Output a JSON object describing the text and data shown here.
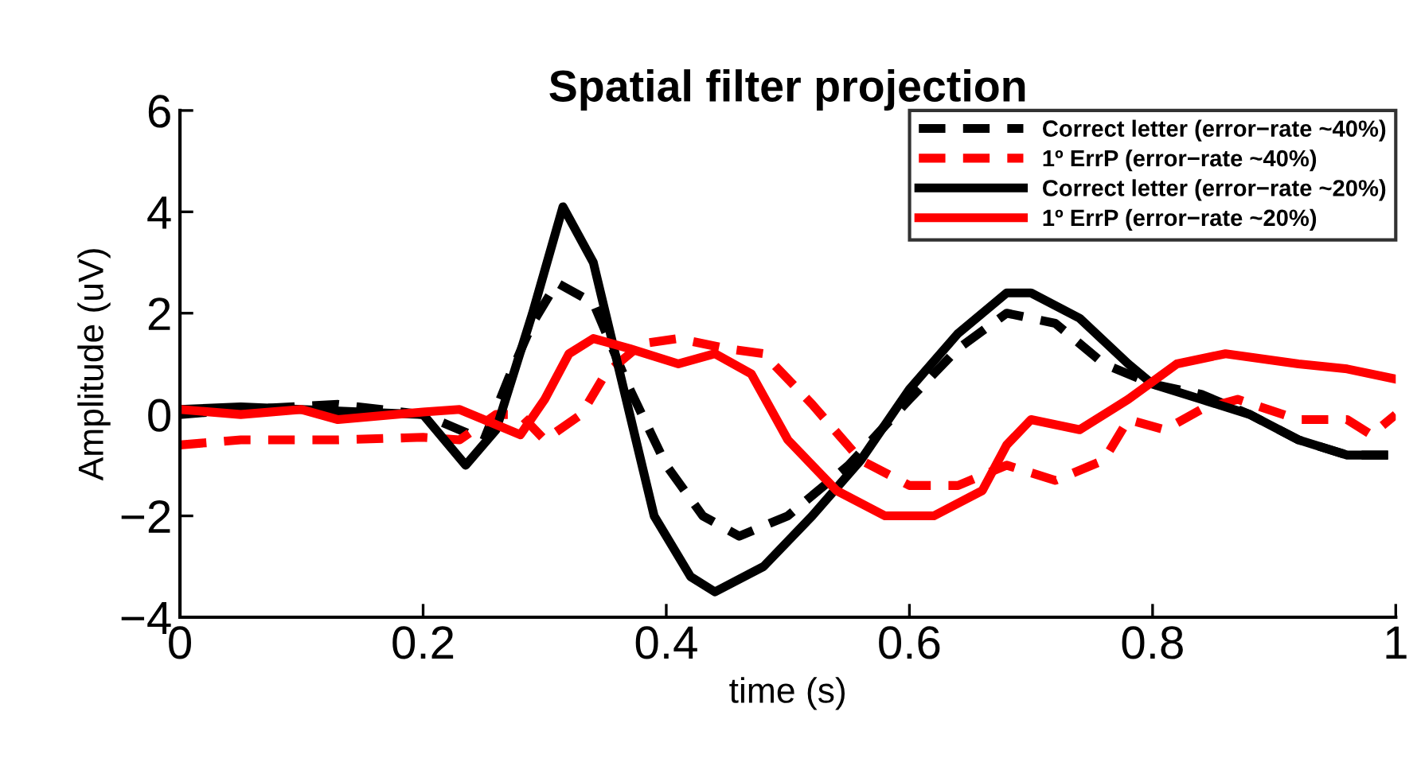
{
  "chart_data": {
    "type": "line",
    "title": "Spatial filter projection",
    "xlabel": "time (s)",
    "ylabel": "Amplitude (uV)",
    "xlim": [
      0,
      1
    ],
    "xticks": [
      0,
      0.2,
      0.4,
      0.6,
      0.8,
      1
    ],
    "ylim": [
      -4,
      6
    ],
    "yticks": [
      -4,
      -2,
      0,
      2,
      4,
      6
    ],
    "grid": false,
    "legend": "top right",
    "marker": "none",
    "series": [
      {
        "name": "Correct letter (error−rate ~40%)",
        "color": "#000000",
        "line_style": "dashed",
        "x": [
          0,
          0.05,
          0.13,
          0.2,
          0.23,
          0.25,
          0.27,
          0.29,
          0.31,
          0.34,
          0.37,
          0.4,
          0.43,
          0.46,
          0.5,
          0.55,
          0.6,
          0.64,
          0.68,
          0.72,
          0.76,
          0.8,
          0.84,
          0.88,
          0.92,
          0.96,
          1
        ],
        "values": [
          0,
          0.1,
          0.2,
          0,
          -0.3,
          -0.5,
          0.7,
          1.8,
          2.6,
          2.2,
          0.5,
          -1,
          -2,
          -2.4,
          -2,
          -1,
          0.3,
          1.3,
          2.0,
          1.8,
          1.0,
          0.6,
          0.4,
          0,
          -0.5,
          -0.8,
          -0.8
        ]
      },
      {
        "name": "1º ErrP (error−rate ~40%)",
        "color": "#ff0000",
        "line_style": "dashed",
        "x": [
          0,
          0.05,
          0.13,
          0.2,
          0.23,
          0.26,
          0.28,
          0.3,
          0.33,
          0.35,
          0.38,
          0.41,
          0.45,
          0.48,
          0.52,
          0.56,
          0.6,
          0.64,
          0.68,
          0.72,
          0.76,
          0.78,
          0.81,
          0.84,
          0.87,
          0.92,
          0.96,
          0.98,
          1
        ],
        "values": [
          -0.6,
          -0.5,
          -0.5,
          -0.45,
          -0.5,
          0,
          0,
          -0.5,
          0,
          0.8,
          1.4,
          1.5,
          1.3,
          1.2,
          0.2,
          -0.9,
          -1.4,
          -1.4,
          -1.0,
          -1.3,
          -0.9,
          -0.1,
          -0.3,
          0.1,
          0.3,
          -0.1,
          -0.1,
          -0.4,
          0
        ]
      },
      {
        "name": "Correct letter (error−rate ~20%)",
        "color": "#000000",
        "line_style": "solid",
        "x": [
          0,
          0.05,
          0.15,
          0.2,
          0.235,
          0.26,
          0.29,
          0.315,
          0.34,
          0.37,
          0.39,
          0.42,
          0.44,
          0.48,
          0.52,
          0.56,
          0.6,
          0.64,
          0.68,
          0.7,
          0.74,
          0.78,
          0.8,
          0.84,
          0.88,
          0.92,
          0.96,
          0.99
        ],
        "values": [
          0.1,
          0.15,
          0.05,
          0,
          -1.0,
          -0.3,
          2,
          4.1,
          3,
          0,
          -2,
          -3.2,
          -3.5,
          -3,
          -2,
          -0.9,
          0.5,
          1.6,
          2.4,
          2.4,
          1.9,
          1.0,
          0.6,
          0.3,
          0,
          -0.5,
          -0.8,
          -0.8
        ]
      },
      {
        "name": "1º ErrP (error−rate ~20%)",
        "color": "#ff0000",
        "line_style": "solid",
        "x": [
          0,
          0.05,
          0.1,
          0.13,
          0.2,
          0.23,
          0.26,
          0.28,
          0.3,
          0.32,
          0.34,
          0.37,
          0.41,
          0.44,
          0.47,
          0.5,
          0.54,
          0.58,
          0.62,
          0.66,
          0.68,
          0.7,
          0.74,
          0.78,
          0.82,
          0.86,
          0.92,
          0.96,
          1
        ],
        "values": [
          0.1,
          0,
          0.1,
          -0.1,
          0.05,
          0.1,
          -0.2,
          -0.4,
          0.3,
          1.2,
          1.5,
          1.3,
          1.0,
          1.2,
          0.8,
          -0.5,
          -1.5,
          -2.0,
          -2.0,
          -1.5,
          -0.6,
          -0.1,
          -0.3,
          0.3,
          1.0,
          1.2,
          1.0,
          0.9,
          0.7
        ]
      }
    ]
  }
}
